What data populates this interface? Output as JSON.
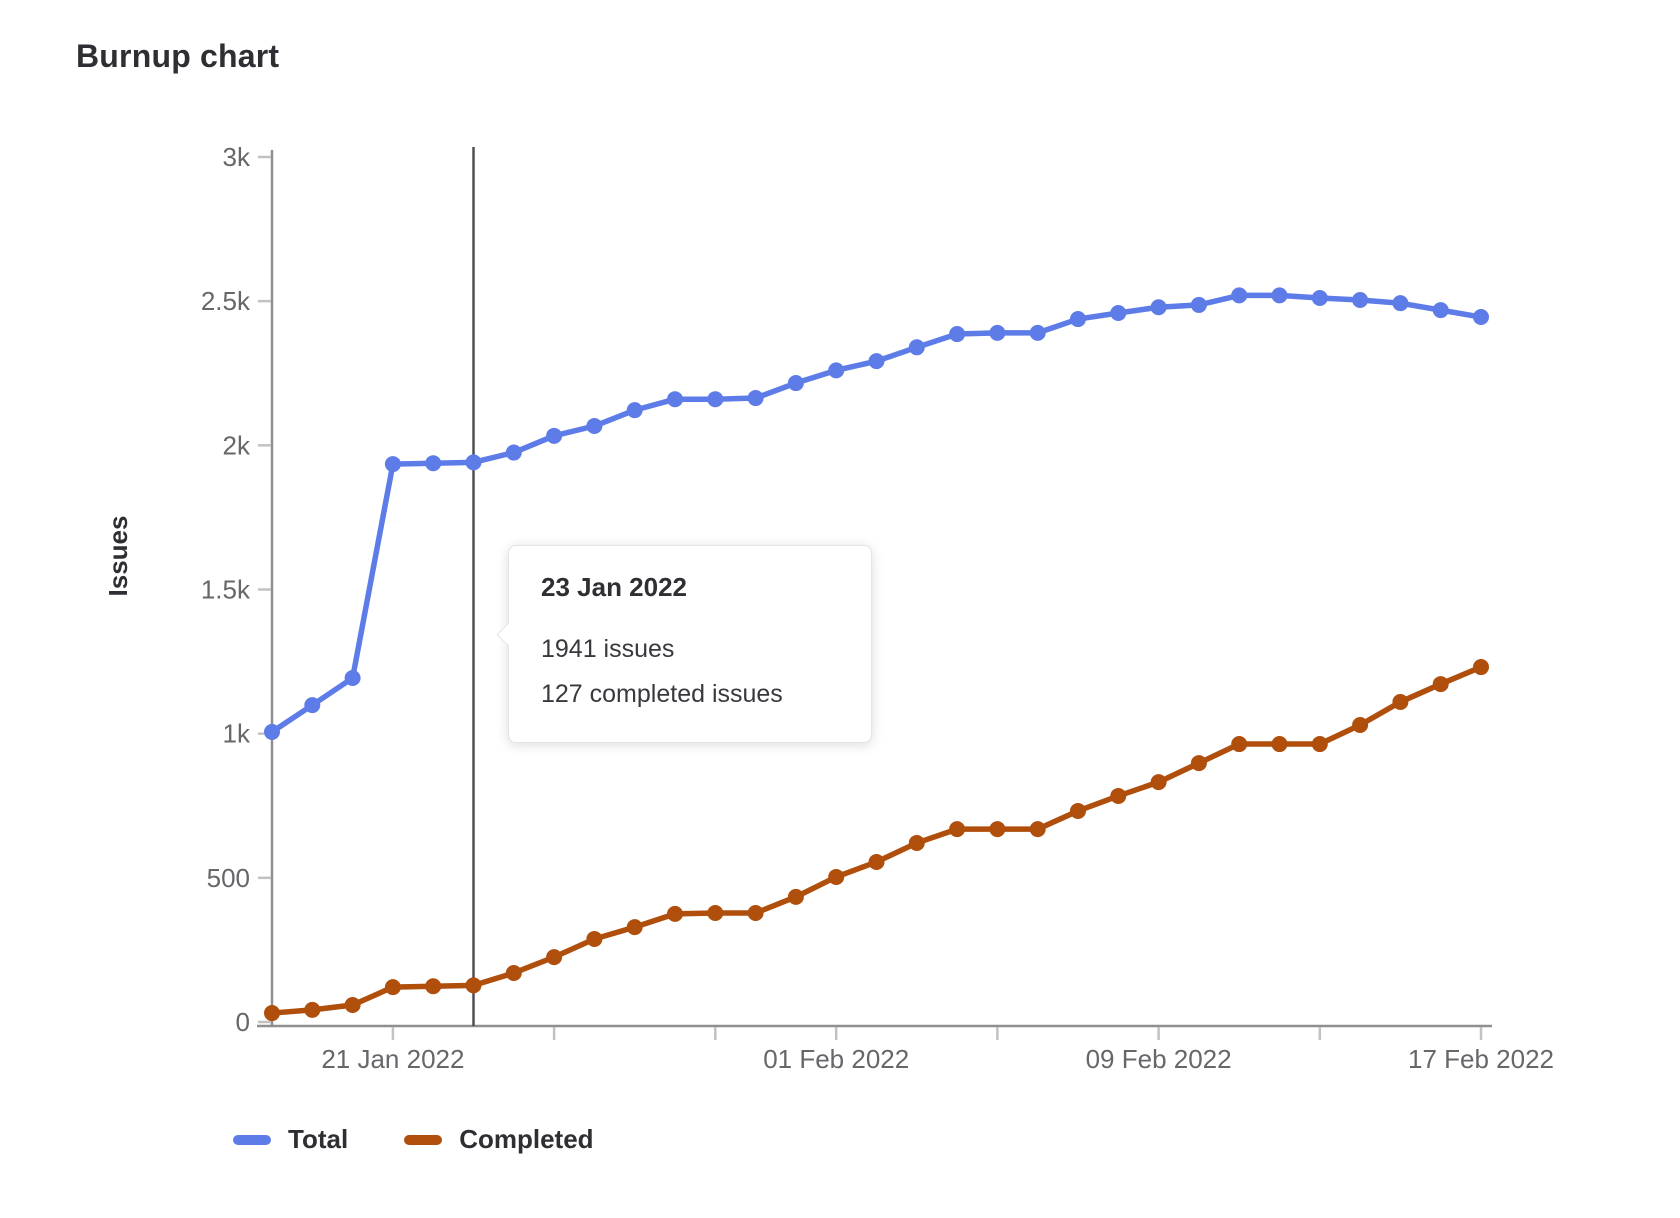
{
  "title": "Burnup chart",
  "chart_data": {
    "type": "line",
    "title": "Burnup chart",
    "xlabel": "",
    "ylabel": "Issues",
    "ylim": [
      0,
      3000
    ],
    "grid": false,
    "legend_position": "bottom",
    "x": [
      "18 Jan 2022",
      "19 Jan 2022",
      "20 Jan 2022",
      "21 Jan 2022",
      "22 Jan 2022",
      "23 Jan 2022",
      "24 Jan 2022",
      "25 Jan 2022",
      "26 Jan 2022",
      "27 Jan 2022",
      "28 Jan 2022",
      "29 Jan 2022",
      "30 Jan 2022",
      "31 Jan 2022",
      "01 Feb 2022",
      "02 Feb 2022",
      "03 Feb 2022",
      "04 Feb 2022",
      "05 Feb 2022",
      "06 Feb 2022",
      "07 Feb 2022",
      "08 Feb 2022",
      "09 Feb 2022",
      "10 Feb 2022",
      "11 Feb 2022",
      "12 Feb 2022",
      "13 Feb 2022",
      "14 Feb 2022",
      "15 Feb 2022",
      "16 Feb 2022",
      "17 Feb 2022"
    ],
    "series": [
      {
        "name": "Total",
        "color": "#5e7ce8",
        "values": [
          1006,
          1099,
          1193,
          1935,
          1938,
          1941,
          1975,
          2033,
          2067,
          2122,
          2160,
          2160,
          2164,
          2216,
          2260,
          2292,
          2340,
          2386,
          2390,
          2390,
          2438,
          2459,
          2479,
          2487,
          2520,
          2520,
          2511,
          2504,
          2493,
          2469,
          2445
        ]
      },
      {
        "name": "Completed",
        "color": "#b04e0c",
        "values": [
          31,
          42,
          59,
          121,
          124,
          127,
          170,
          225,
          288,
          329,
          375,
          378,
          378,
          434,
          503,
          555,
          621,
          669,
          669,
          669,
          732,
          784,
          832,
          898,
          964,
          964,
          964,
          1030,
          1110,
          1172,
          1231
        ]
      }
    ],
    "y_ticks": [
      {
        "value": 0,
        "label": "0"
      },
      {
        "value": 500,
        "label": "500"
      },
      {
        "value": 1000,
        "label": "1k"
      },
      {
        "value": 1500,
        "label": "1.5k"
      },
      {
        "value": 2000,
        "label": "2k"
      },
      {
        "value": 2500,
        "label": "2.5k"
      },
      {
        "value": 3000,
        "label": "3k"
      }
    ],
    "x_ticks": [
      {
        "index": 3,
        "label": "21 Jan 2022"
      },
      {
        "index": 7,
        "label": ""
      },
      {
        "index": 11,
        "label": ""
      },
      {
        "index": 14,
        "label": "01 Feb 2022"
      },
      {
        "index": 18,
        "label": ""
      },
      {
        "index": 22,
        "label": "09 Feb 2022"
      },
      {
        "index": 26,
        "label": ""
      },
      {
        "index": 30,
        "label": "17 Feb 2022"
      }
    ],
    "crosshair_index": 5
  },
  "tooltip": {
    "date": "23 Jan 2022",
    "total_line": "1941 issues",
    "completed_line": "127 completed issues"
  },
  "legend": {
    "items": [
      {
        "label": "Total",
        "color": "#5e7ce8"
      },
      {
        "label": "Completed",
        "color": "#b04e0c"
      }
    ]
  },
  "colors": {
    "axis_line": "#8f8f92",
    "tick": "#c2c2c5",
    "axis_text": "#67676b",
    "crosshair": "#4f4f55",
    "heading_text": "#2e2e33"
  }
}
